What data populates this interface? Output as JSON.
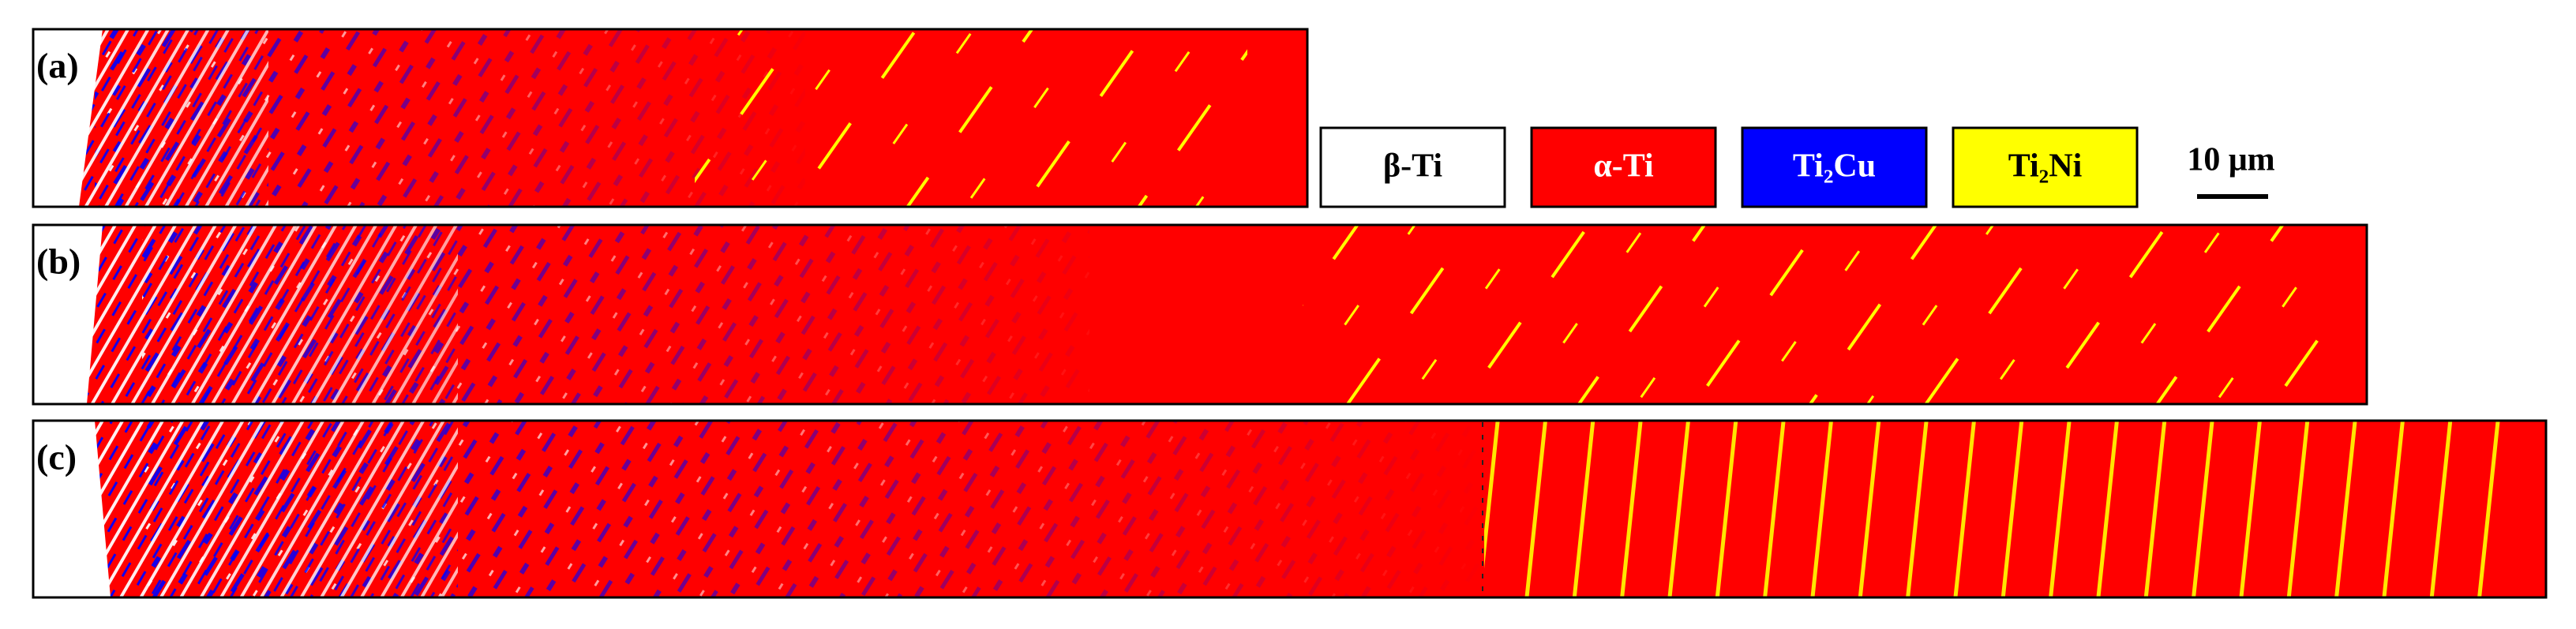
{
  "panels": [
    {
      "label": "(a)"
    },
    {
      "label": "(b)"
    },
    {
      "label": "(c)"
    }
  ],
  "legend": [
    {
      "label": "β-Ti",
      "color": "#ffffff",
      "text_color": "#000000"
    },
    {
      "label": "α-Ti",
      "color": "#ff0000",
      "text_color": "#ffffff"
    },
    {
      "label": "Ti₂Cu",
      "color": "#0000ff",
      "text_color": "#ffffff"
    },
    {
      "label": "Ti₂Ni",
      "color": "#ffff00",
      "text_color": "#000000"
    }
  ],
  "scale_bar": {
    "label": "10 μm"
  }
}
